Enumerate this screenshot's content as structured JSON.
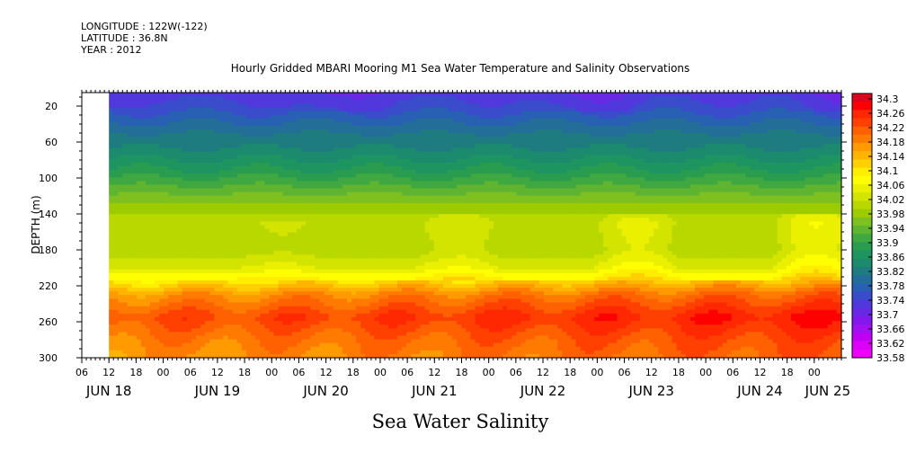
{
  "header": {
    "longitude": "LONGITUDE : 122W(-122)",
    "latitude": "LATITUDE : 36.8N",
    "year": "YEAR : 2012"
  },
  "chart_data": {
    "type": "heatmap",
    "title": "Hourly Gridded MBARI Mooring M1 Sea Water Temperature and Salinity Observations",
    "xlabel": "Sea Water Salinity",
    "ylabel": "DEPTH (m)",
    "x_start_hours": 6,
    "x_end_hours": 174,
    "data_start_hours": 12,
    "ylim": [
      300,
      5
    ],
    "y_ticks": [
      20,
      60,
      100,
      140,
      180,
      220,
      260,
      300
    ],
    "x_hour_ticks": [
      {
        "t": 6,
        "label": "06"
      },
      {
        "t": 12,
        "label": "12"
      },
      {
        "t": 18,
        "label": "18"
      },
      {
        "t": 24,
        "label": "00"
      },
      {
        "t": 30,
        "label": "06"
      },
      {
        "t": 36,
        "label": "12"
      },
      {
        "t": 42,
        "label": "18"
      },
      {
        "t": 48,
        "label": "00"
      },
      {
        "t": 54,
        "label": "06"
      },
      {
        "t": 60,
        "label": "12"
      },
      {
        "t": 66,
        "label": "18"
      },
      {
        "t": 72,
        "label": "00"
      },
      {
        "t": 78,
        "label": "06"
      },
      {
        "t": 84,
        "label": "12"
      },
      {
        "t": 90,
        "label": "18"
      },
      {
        "t": 96,
        "label": "00"
      },
      {
        "t": 102,
        "label": "06"
      },
      {
        "t": 108,
        "label": "12"
      },
      {
        "t": 114,
        "label": "18"
      },
      {
        "t": 120,
        "label": "00"
      },
      {
        "t": 126,
        "label": "06"
      },
      {
        "t": 132,
        "label": "12"
      },
      {
        "t": 138,
        "label": "18"
      },
      {
        "t": 144,
        "label": "00"
      },
      {
        "t": 150,
        "label": "06"
      },
      {
        "t": 156,
        "label": "12"
      },
      {
        "t": 162,
        "label": "18"
      },
      {
        "t": 168,
        "label": "00"
      }
    ],
    "x_day_labels": [
      {
        "t": 12,
        "label": "JUN 18"
      },
      {
        "t": 36,
        "label": "JUN 19"
      },
      {
        "t": 60,
        "label": "JUN 20"
      },
      {
        "t": 84,
        "label": "JUN 21"
      },
      {
        "t": 108,
        "label": "JUN 22"
      },
      {
        "t": 132,
        "label": "JUN 23"
      },
      {
        "t": 156,
        "label": "JUN 24"
      },
      {
        "t": 171,
        "label": "JUN 25"
      }
    ],
    "depth_profile": [
      {
        "depth": 5,
        "value": 33.72
      },
      {
        "depth": 20,
        "value": 33.74
      },
      {
        "depth": 35,
        "value": 33.77
      },
      {
        "depth": 50,
        "value": 33.8
      },
      {
        "depth": 70,
        "value": 33.83
      },
      {
        "depth": 90,
        "value": 33.87
      },
      {
        "depth": 110,
        "value": 33.92
      },
      {
        "depth": 130,
        "value": 33.97
      },
      {
        "depth": 150,
        "value": 34.0
      },
      {
        "depth": 180,
        "value": 33.99
      },
      {
        "depth": 200,
        "value": 34.03
      },
      {
        "depth": 215,
        "value": 34.09
      },
      {
        "depth": 230,
        "value": 34.16
      },
      {
        "depth": 255,
        "value": 34.22
      },
      {
        "depth": 280,
        "value": 34.18
      },
      {
        "depth": 300,
        "value": 34.16
      }
    ],
    "colorbar": {
      "labels": [
        "34.3",
        "34.26",
        "34.22",
        "34.18",
        "34.14",
        "34.1",
        "34.06",
        "34.02",
        "33.98",
        "33.94",
        "33.9",
        "33.86",
        "33.82",
        "33.78",
        "33.74",
        "33.7",
        "33.66",
        "33.62",
        "33.58"
      ],
      "colors": [
        "#e00020",
        "#ff0000",
        "#ff2800",
        "#ff4000",
        "#ff6000",
        "#ff7a00",
        "#ff9a00",
        "#ffb400",
        "#ffd000",
        "#ffee00",
        "#ffff00",
        "#eaf000",
        "#d2e400",
        "#b8d800",
        "#9ccc00",
        "#7ec020",
        "#5fb430",
        "#40a840",
        "#2a9c50",
        "#1e9460",
        "#1c8a6c",
        "#1e7c80",
        "#226e98",
        "#2860b4",
        "#3a4ccc",
        "#5038dc",
        "#6828e4",
        "#8418ec",
        "#a010f0",
        "#c000f4",
        "#dd00f8",
        "#f000fc"
      ]
    }
  }
}
